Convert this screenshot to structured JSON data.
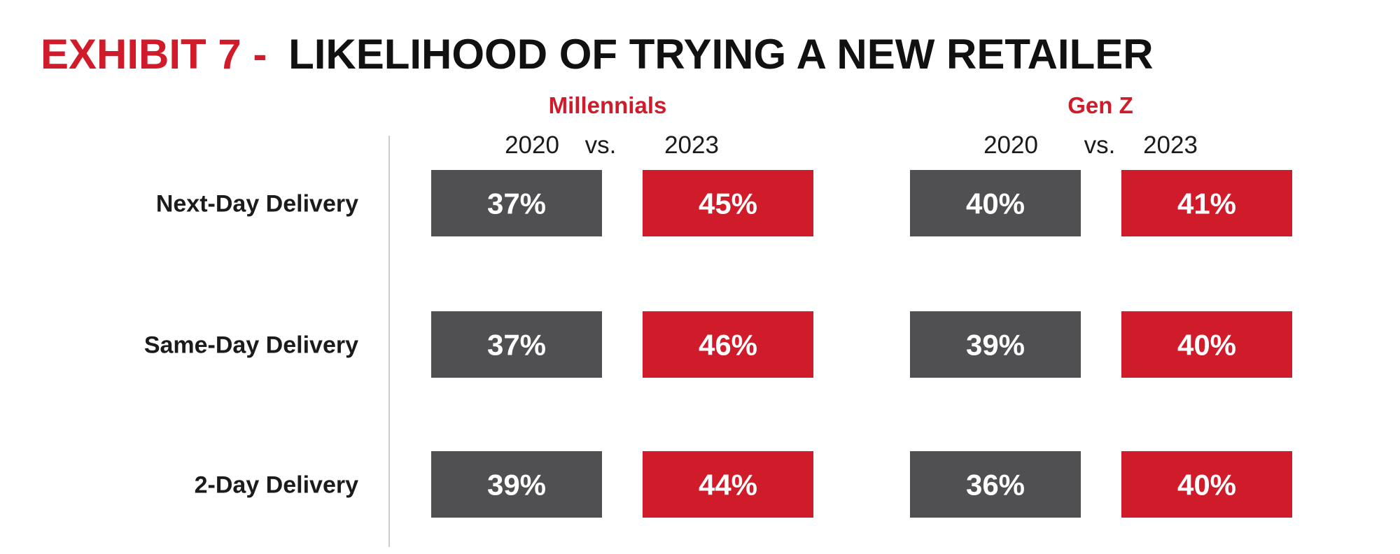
{
  "title": {
    "prefix": "EXHIBIT 7 -",
    "main": "LIKELIHOOD OF TRYING A NEW RETAILER"
  },
  "colors": {
    "accent": "#d01c2a",
    "dark": "#505052",
    "text": "#1b1b1b",
    "divider": "#cccccc"
  },
  "chart_data": {
    "type": "table",
    "groups": [
      {
        "name": "Millennials",
        "years": [
          "2020",
          "2023"
        ],
        "separator": "vs."
      },
      {
        "name": "Gen Z",
        "years": [
          "2020",
          "2023"
        ],
        "separator": "vs."
      }
    ],
    "rows": [
      {
        "label": "Next-Day Delivery",
        "values": [
          [
            "37%",
            "45%"
          ],
          [
            "40%",
            "41%"
          ]
        ]
      },
      {
        "label": "Same-Day Delivery",
        "values": [
          [
            "37%",
            "46%"
          ],
          [
            "39%",
            "40%"
          ]
        ]
      },
      {
        "label": "2-Day Delivery",
        "values": [
          [
            "39%",
            "44%"
          ],
          [
            "36%",
            "40%"
          ]
        ]
      }
    ]
  }
}
